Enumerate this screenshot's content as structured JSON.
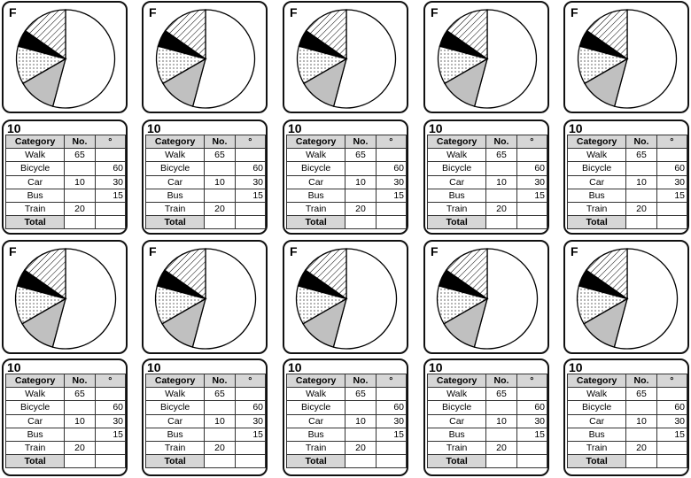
{
  "sheet": {
    "pie_label": "F",
    "table_number": "10",
    "pie_fills": [
      "#ffffff",
      "#c0c0c0",
      "dots",
      "#000000",
      "hatch"
    ],
    "table": {
      "headers": [
        "Category",
        "No.",
        "°"
      ],
      "rows": [
        {
          "category": "Walk",
          "no": "65",
          "deg": ""
        },
        {
          "category": "Bicycle",
          "no": "",
          "deg": "60"
        },
        {
          "category": "Car",
          "no": "10",
          "deg": "30"
        },
        {
          "category": "Bus",
          "no": "",
          "deg": "15"
        },
        {
          "category": "Train",
          "no": "20",
          "deg": ""
        },
        {
          "category": "Total",
          "no": "",
          "deg": ""
        }
      ]
    }
  }
}
